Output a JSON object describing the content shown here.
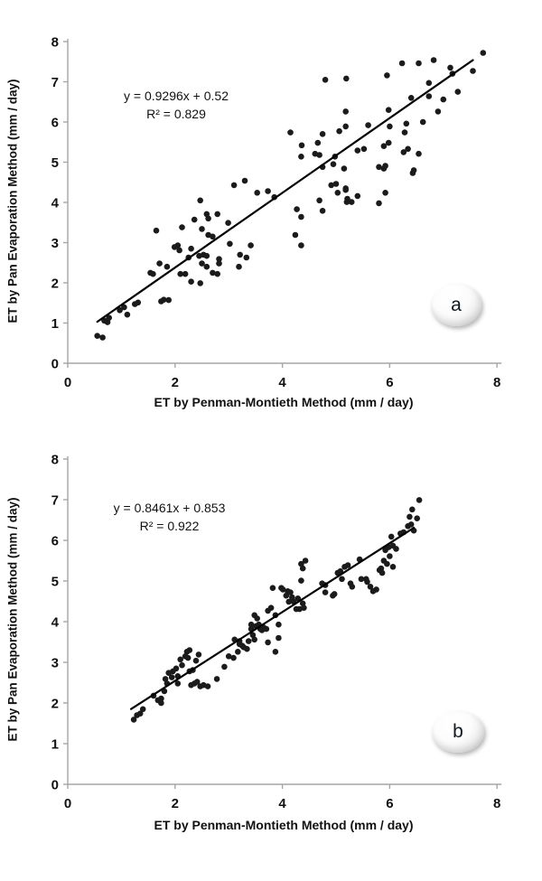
{
  "chart_data": [
    {
      "type": "scatter",
      "panel_label": "a",
      "xlabel": "ET by Penman-Montieth Method (mm / day)",
      "ylabel": "ET by Pan Evaporation Method (mm / day)",
      "xlim": [
        0,
        8
      ],
      "ylim": [
        0,
        8
      ],
      "x_ticks": [
        0,
        2,
        4,
        6,
        8
      ],
      "y_ticks": [
        0,
        1,
        2,
        3,
        4,
        5,
        6,
        7,
        8
      ],
      "grid": false,
      "legend": "none",
      "marker_color": "#1b1b1b",
      "annotation": {
        "equation": "y = 0.9296x + 0.52",
        "r2": "R² = 0.829"
      },
      "trendline": {
        "slope": 0.9296,
        "intercept": 0.52,
        "x_range": [
          0.55,
          7.55
        ],
        "color": "#000000"
      },
      "points": [
        [
          0.55,
          0.68
        ],
        [
          0.65,
          0.64
        ],
        [
          0.68,
          1.06
        ],
        [
          0.74,
          1.02
        ],
        [
          0.77,
          1.13
        ],
        [
          0.97,
          1.32
        ],
        [
          1.05,
          1.39
        ],
        [
          1.11,
          1.21
        ],
        [
          1.25,
          1.47
        ],
        [
          1.31,
          1.51
        ],
        [
          1.74,
          1.54
        ],
        [
          1.79,
          1.58
        ],
        [
          1.88,
          1.57
        ],
        [
          1.54,
          2.25
        ],
        [
          1.59,
          2.22
        ],
        [
          1.65,
          3.3
        ],
        [
          1.71,
          2.48
        ],
        [
          1.85,
          2.4
        ],
        [
          1.99,
          2.89
        ],
        [
          2.05,
          2.93
        ],
        [
          2.08,
          2.81
        ],
        [
          2.1,
          2.22
        ],
        [
          2.19,
          2.22
        ],
        [
          2.25,
          2.63
        ],
        [
          2.3,
          2.85
        ],
        [
          2.3,
          2.03
        ],
        [
          2.45,
          2.67
        ],
        [
          2.47,
          1.99
        ],
        [
          2.53,
          2.7
        ],
        [
          2.59,
          2.67
        ],
        [
          2.5,
          2.48
        ],
        [
          2.59,
          2.4
        ],
        [
          2.7,
          2.25
        ],
        [
          2.79,
          2.22
        ],
        [
          2.82,
          2.59
        ],
        [
          2.82,
          2.48
        ],
        [
          3.02,
          2.97
        ],
        [
          3.19,
          2.4
        ],
        [
          3.21,
          2.7
        ],
        [
          3.33,
          2.63
        ],
        [
          3.41,
          2.93
        ],
        [
          2.13,
          3.38
        ],
        [
          2.36,
          3.57
        ],
        [
          2.47,
          4.05
        ],
        [
          2.5,
          3.34
        ],
        [
          2.59,
          3.71
        ],
        [
          2.62,
          3.6
        ],
        [
          2.62,
          3.19
        ],
        [
          2.7,
          3.15
        ],
        [
          2.79,
          3.71
        ],
        [
          2.99,
          3.49
        ],
        [
          3.1,
          4.43
        ],
        [
          3.3,
          4.54
        ],
        [
          3.53,
          4.24
        ],
        [
          3.73,
          4.28
        ],
        [
          3.85,
          4.13
        ],
        [
          4.24,
          3.19
        ],
        [
          4.27,
          3.83
        ],
        [
          4.35,
          3.64
        ],
        [
          4.35,
          2.93
        ],
        [
          4.75,
          3.79
        ],
        [
          4.91,
          4.43
        ],
        [
          5.03,
          4.24
        ],
        [
          5.18,
          4.31
        ],
        [
          5.4,
          4.16
        ],
        [
          4.69,
          4.05
        ],
        [
          5.2,
          4.01
        ],
        [
          5.29,
          4.01
        ],
        [
          5.92,
          4.24
        ],
        [
          5.8,
          3.98
        ],
        [
          5.0,
          4.46
        ],
        [
          5.18,
          4.35
        ],
        [
          5.21,
          4.09
        ],
        [
          4.95,
          4.95
        ],
        [
          4.75,
          4.88
        ],
        [
          5.15,
          4.84
        ],
        [
          5.8,
          4.88
        ],
        [
          5.89,
          4.84
        ],
        [
          5.92,
          4.91
        ],
        [
          6.45,
          4.8
        ],
        [
          6.43,
          4.73
        ],
        [
          4.15,
          5.74
        ],
        [
          4.36,
          5.42
        ],
        [
          4.35,
          5.14
        ],
        [
          4.61,
          5.21
        ],
        [
          4.69,
          5.18
        ],
        [
          4.98,
          5.14
        ],
        [
          4.66,
          5.48
        ],
        [
          5.4,
          5.29
        ],
        [
          5.52,
          5.33
        ],
        [
          5.89,
          5.4
        ],
        [
          6.26,
          5.25
        ],
        [
          6.34,
          5.33
        ],
        [
          6.54,
          5.21
        ],
        [
          4.75,
          5.7
        ],
        [
          5.06,
          5.77
        ],
        [
          5.18,
          5.89
        ],
        [
          5.6,
          5.92
        ],
        [
          6.0,
          5.89
        ],
        [
          6.31,
          5.96
        ],
        [
          6.62,
          6.0
        ],
        [
          5.98,
          5.48
        ],
        [
          6.28,
          5.74
        ],
        [
          5.18,
          6.26
        ],
        [
          5.98,
          6.3
        ],
        [
          6.9,
          6.26
        ],
        [
          6.4,
          6.6
        ],
        [
          6.73,
          6.64
        ],
        [
          7.0,
          6.56
        ],
        [
          6.73,
          6.97
        ],
        [
          7.27,
          6.75
        ],
        [
          4.8,
          7.05
        ],
        [
          5.19,
          7.08
        ],
        [
          5.95,
          7.16
        ],
        [
          6.23,
          7.46
        ],
        [
          6.54,
          7.46
        ],
        [
          6.82,
          7.54
        ],
        [
          7.13,
          7.35
        ],
        [
          7.17,
          7.2
        ],
        [
          7.55,
          7.27
        ],
        [
          7.74,
          7.72
        ]
      ]
    },
    {
      "type": "scatter",
      "panel_label": "b",
      "xlabel": "ET by Penman-Montieth Method (mm / day)",
      "ylabel": "ET by Pan Evaporation Method (mm / day)",
      "xlim": [
        0,
        8
      ],
      "ylim": [
        0,
        8
      ],
      "x_ticks": [
        0,
        2,
        4,
        6,
        8
      ],
      "y_ticks": [
        0,
        1,
        2,
        3,
        4,
        5,
        6,
        7,
        8
      ],
      "grid": false,
      "legend": "none",
      "marker_color": "#1b1b1b",
      "annotation": {
        "equation": "y = 0.8461x + 0.853",
        "r2": "R² = 0.922"
      },
      "trendline": {
        "slope": 0.8461,
        "intercept": 0.853,
        "x_range": [
          1.18,
          6.45
        ],
        "color": "#000000"
      },
      "points": [
        [
          1.23,
          1.59
        ],
        [
          1.29,
          1.7
        ],
        [
          1.35,
          1.74
        ],
        [
          1.4,
          1.85
        ],
        [
          1.6,
          2.18
        ],
        [
          1.68,
          2.07
        ],
        [
          1.74,
          2.11
        ],
        [
          1.74,
          2.0
        ],
        [
          1.8,
          2.29
        ],
        [
          1.82,
          2.59
        ],
        [
          1.85,
          2.48
        ],
        [
          1.88,
          2.74
        ],
        [
          1.94,
          2.63
        ],
        [
          1.96,
          2.78
        ],
        [
          2.02,
          2.85
        ],
        [
          2.05,
          2.66
        ],
        [
          2.05,
          2.48
        ],
        [
          2.1,
          3.07
        ],
        [
          2.13,
          2.93
        ],
        [
          2.19,
          3.15
        ],
        [
          2.22,
          3.26
        ],
        [
          2.24,
          3.11
        ],
        [
          2.27,
          3.3
        ],
        [
          2.27,
          2.78
        ],
        [
          2.33,
          2.81
        ],
        [
          2.39,
          3.04
        ],
        [
          2.44,
          3.19
        ],
        [
          2.3,
          2.44
        ],
        [
          2.36,
          2.48
        ],
        [
          2.41,
          2.52
        ],
        [
          2.47,
          2.41
        ],
        [
          2.53,
          2.44
        ],
        [
          2.61,
          2.41
        ],
        [
          2.78,
          2.59
        ],
        [
          2.92,
          2.89
        ],
        [
          3.0,
          3.15
        ],
        [
          3.09,
          3.11
        ],
        [
          3.11,
          3.56
        ],
        [
          3.17,
          3.26
        ],
        [
          3.2,
          3.45
        ],
        [
          3.2,
          3.52
        ],
        [
          3.25,
          3.41
        ],
        [
          3.28,
          3.37
        ],
        [
          3.34,
          3.33
        ],
        [
          3.37,
          3.52
        ],
        [
          3.42,
          3.82
        ],
        [
          3.42,
          3.93
        ],
        [
          3.45,
          3.67
        ],
        [
          3.48,
          3.56
        ],
        [
          3.48,
          4.16
        ],
        [
          3.51,
          3.89
        ],
        [
          3.53,
          4.08
        ],
        [
          3.56,
          3.93
        ],
        [
          3.59,
          3.82
        ],
        [
          3.62,
          3.79
        ],
        [
          3.65,
          3.86
        ],
        [
          3.7,
          3.82
        ],
        [
          3.73,
          4.27
        ],
        [
          3.73,
          3.49
        ],
        [
          3.79,
          4.34
        ],
        [
          3.82,
          4.83
        ],
        [
          3.87,
          4.16
        ],
        [
          3.87,
          3.26
        ],
        [
          3.93,
          3.93
        ],
        [
          3.93,
          3.6
        ],
        [
          3.98,
          4.83
        ],
        [
          4.01,
          4.79
        ],
        [
          4.07,
          4.64
        ],
        [
          4.1,
          4.75
        ],
        [
          4.12,
          4.49
        ],
        [
          4.15,
          4.72
        ],
        [
          4.18,
          4.6
        ],
        [
          4.21,
          4.49
        ],
        [
          4.26,
          4.31
        ],
        [
          4.29,
          4.57
        ],
        [
          4.32,
          4.31
        ],
        [
          4.35,
          5.42
        ],
        [
          4.38,
          5.31
        ],
        [
          4.35,
          5.01
        ],
        [
          4.38,
          4.45
        ],
        [
          4.4,
          4.34
        ],
        [
          4.43,
          5.5
        ],
        [
          4.74,
          4.94
        ],
        [
          4.8,
          4.9
        ],
        [
          4.8,
          4.72
        ],
        [
          4.94,
          4.64
        ],
        [
          4.97,
          4.68
        ],
        [
          5.03,
          5.2
        ],
        [
          5.08,
          5.24
        ],
        [
          5.11,
          5.05
        ],
        [
          5.16,
          5.35
        ],
        [
          5.22,
          5.39
        ],
        [
          5.27,
          4.94
        ],
        [
          5.3,
          4.86
        ],
        [
          5.44,
          5.53
        ],
        [
          5.47,
          5.05
        ],
        [
          5.56,
          5.05
        ],
        [
          5.58,
          4.98
        ],
        [
          5.64,
          4.86
        ],
        [
          5.69,
          4.75
        ],
        [
          5.75,
          4.79
        ],
        [
          5.81,
          5.27
        ],
        [
          5.84,
          5.31
        ],
        [
          5.86,
          5.2
        ],
        [
          5.89,
          5.5
        ],
        [
          5.92,
          5.76
        ],
        [
          5.95,
          5.42
        ],
        [
          5.98,
          5.83
        ],
        [
          6.0,
          5.61
        ],
        [
          6.03,
          6.09
        ],
        [
          6.06,
          5.87
        ],
        [
          6.06,
          5.35
        ],
        [
          6.12,
          5.79
        ],
        [
          6.2,
          6.17
        ],
        [
          6.26,
          6.2
        ],
        [
          6.34,
          6.35
        ],
        [
          6.37,
          6.58
        ],
        [
          6.4,
          6.39
        ],
        [
          6.42,
          6.76
        ],
        [
          6.45,
          6.24
        ],
        [
          6.51,
          6.54
        ],
        [
          6.55,
          6.99
        ]
      ]
    }
  ]
}
